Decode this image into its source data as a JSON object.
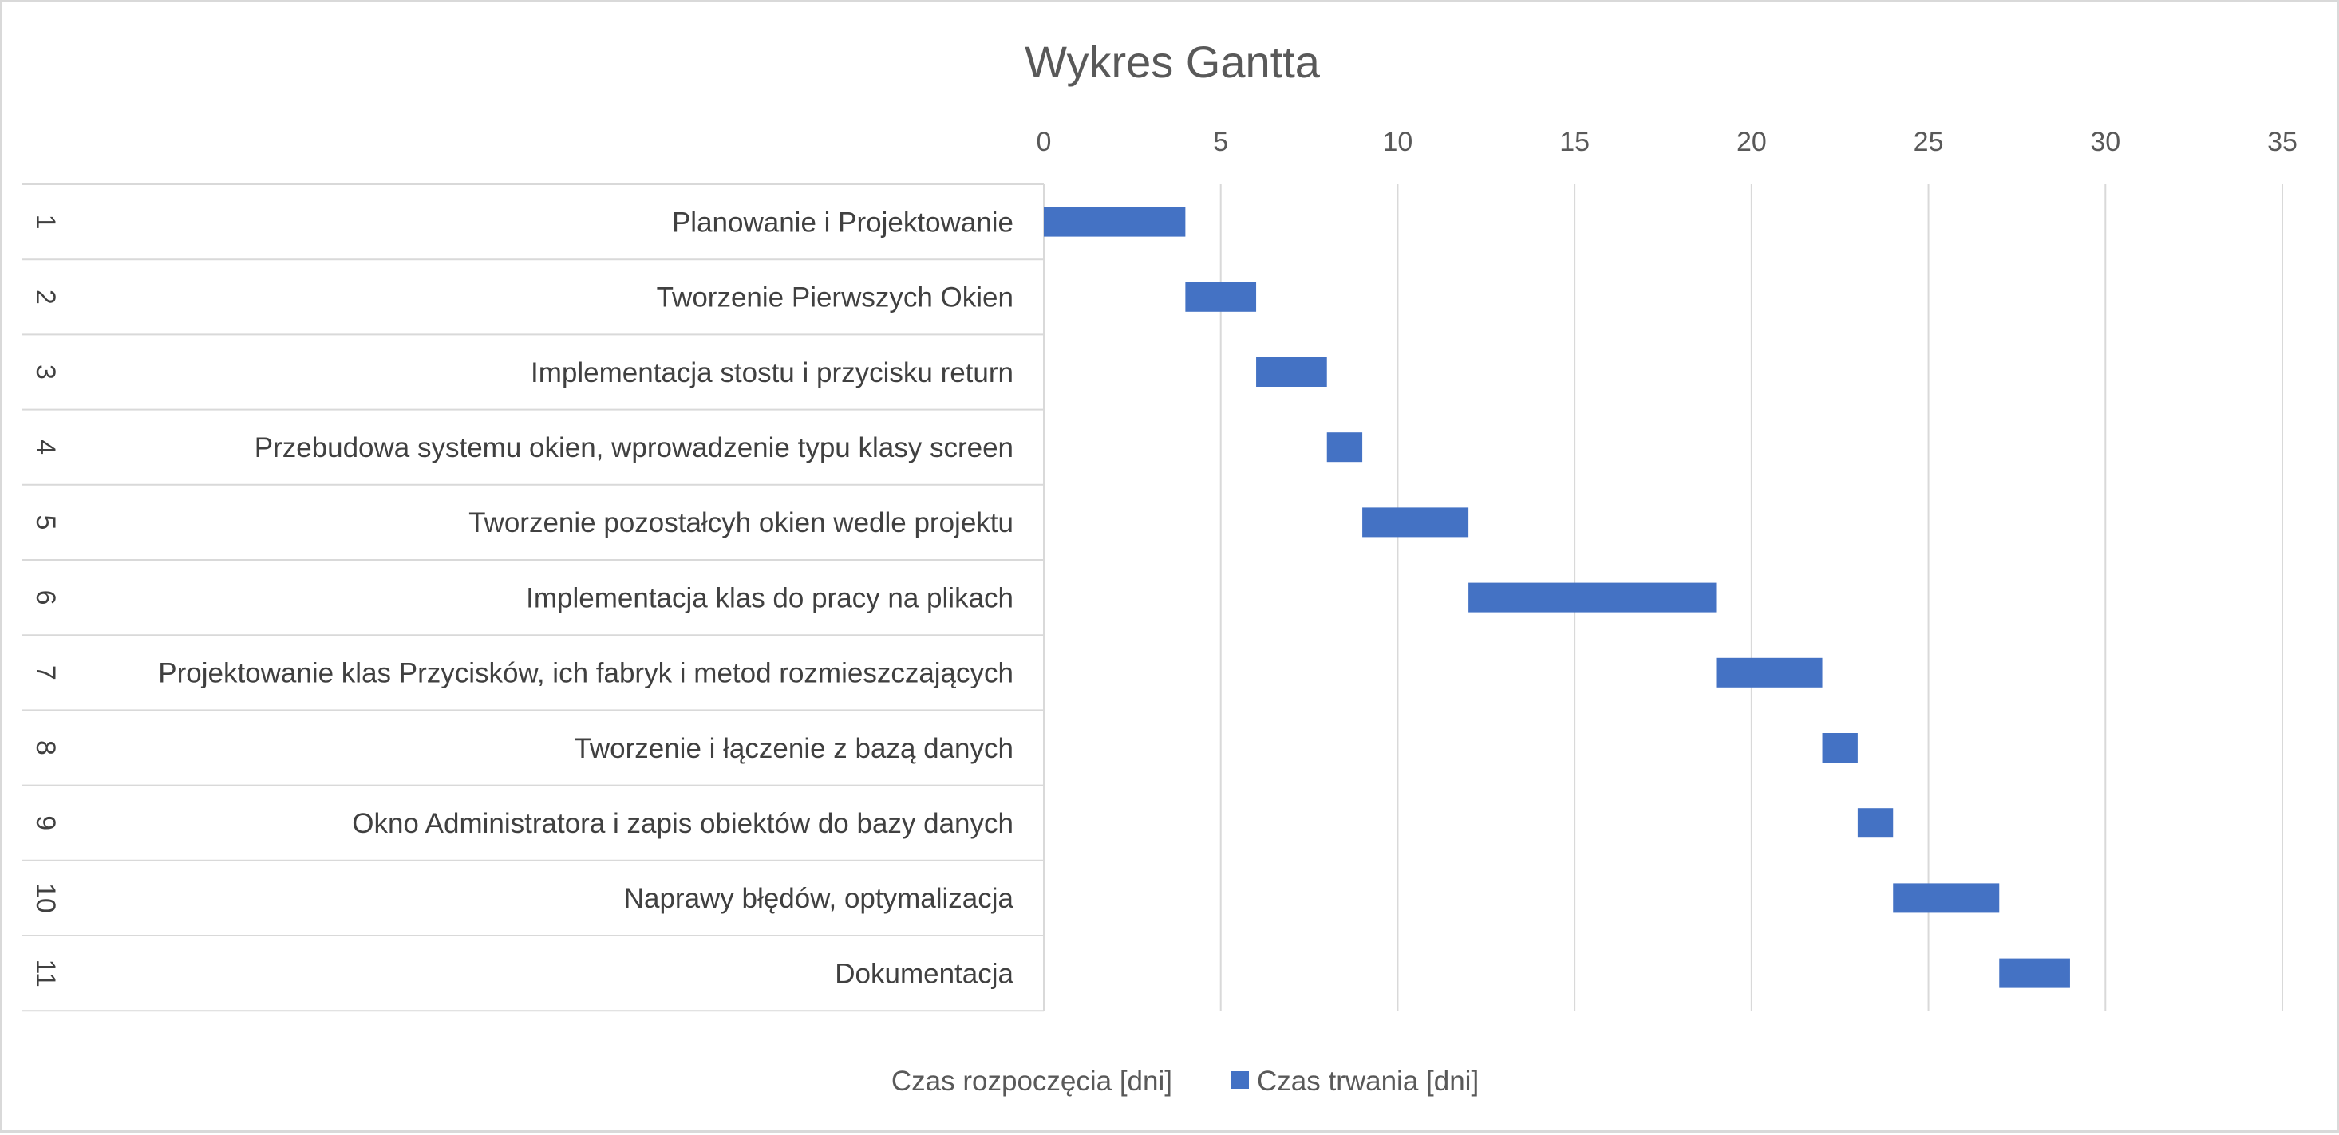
{
  "chart_data": {
    "type": "bar",
    "orientation": "horizontal",
    "stacked": true,
    "title": "Wykres Gantta",
    "xlim": [
      0,
      35
    ],
    "x_ticks": [
      0,
      5,
      10,
      15,
      20,
      25,
      30,
      35
    ],
    "x_axis_position": "top",
    "grid": true,
    "legend_position": "bottom",
    "row_numbers": [
      "1",
      "2",
      "3",
      "4",
      "5",
      "6",
      "7",
      "8",
      "9",
      "10",
      "11"
    ],
    "categories": [
      "Planowanie i Projektowanie",
      "Tworzenie Pierwszych Okien",
      "Implementacja stostu i przycisku return",
      "Przebudowa systemu okien, wprowadzenie typu klasy screen",
      "Tworzenie pozostałcyh okien wedle projektu",
      "Implementacja klas do pracy na plikach",
      "Projektowanie klas Przycisków, ich fabryk i metod rozmieszczających",
      "Tworzenie i łączenie z bazą danych",
      "Okno Administratora i zapis obiektów do bazy danych",
      "Naprawy błędów, optymalizacja",
      "Dokumentacja"
    ],
    "series": [
      {
        "name": "Czas rozpoczęcia [dni]",
        "values": [
          0,
          4,
          6,
          8,
          9,
          12,
          19,
          22,
          23,
          24,
          27
        ],
        "color": "none"
      },
      {
        "name": "Czas trwania [dni]",
        "values": [
          4,
          2,
          2,
          1,
          3,
          7,
          3,
          1,
          1,
          3,
          2
        ],
        "color": "#4472c4"
      }
    ]
  }
}
